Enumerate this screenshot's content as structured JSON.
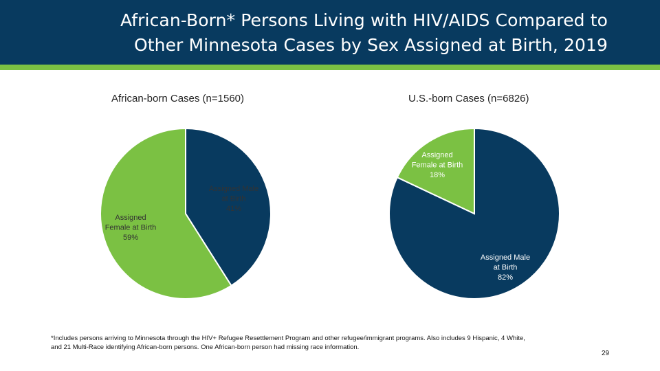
{
  "header": {
    "title_line1": "African-Born* Persons Living with HIV/AIDS Compared to",
    "title_line2": "Other Minnesota Cases by Sex Assigned at Birth, 2019"
  },
  "colors": {
    "header_bg": "#083a5f",
    "accent": "#7bc143",
    "male": "#083a5f",
    "female": "#7bc143"
  },
  "chart_data": [
    {
      "type": "pie",
      "title": "African-born Cases (n=1560)",
      "slices": [
        {
          "label_lines": [
            "Assigned Male",
            "at Birth",
            "41%"
          ],
          "name": "Assigned Male at Birth",
          "value": 41,
          "color": "#083a5f"
        },
        {
          "label_lines": [
            "Assigned",
            "Female at Birth",
            "59%"
          ],
          "name": "Assigned Female at Birth",
          "value": 59,
          "color": "#7bc143"
        }
      ]
    },
    {
      "type": "pie",
      "title": "U.S.-born Cases (n=6826)",
      "slices": [
        {
          "label_lines": [
            "Assigned Male",
            "at Birth",
            "82%"
          ],
          "name": "Assigned Male at Birth",
          "value": 82,
          "color": "#083a5f"
        },
        {
          "label_lines": [
            "Assigned",
            "Female at Birth",
            "18%"
          ],
          "name": "Assigned Female at Birth",
          "value": 18,
          "color": "#7bc143"
        }
      ]
    }
  ],
  "footnote": {
    "line1": "*Includes persons arriving to Minnesota through the HIV+ Refugee Resettlement Program and other refugee/immigrant programs. Also includes 9 Hispanic, 4 White,",
    "line2": "and 21 Multi-Race identifying African-born persons. One African-born person had missing race information."
  },
  "page_number": "29"
}
